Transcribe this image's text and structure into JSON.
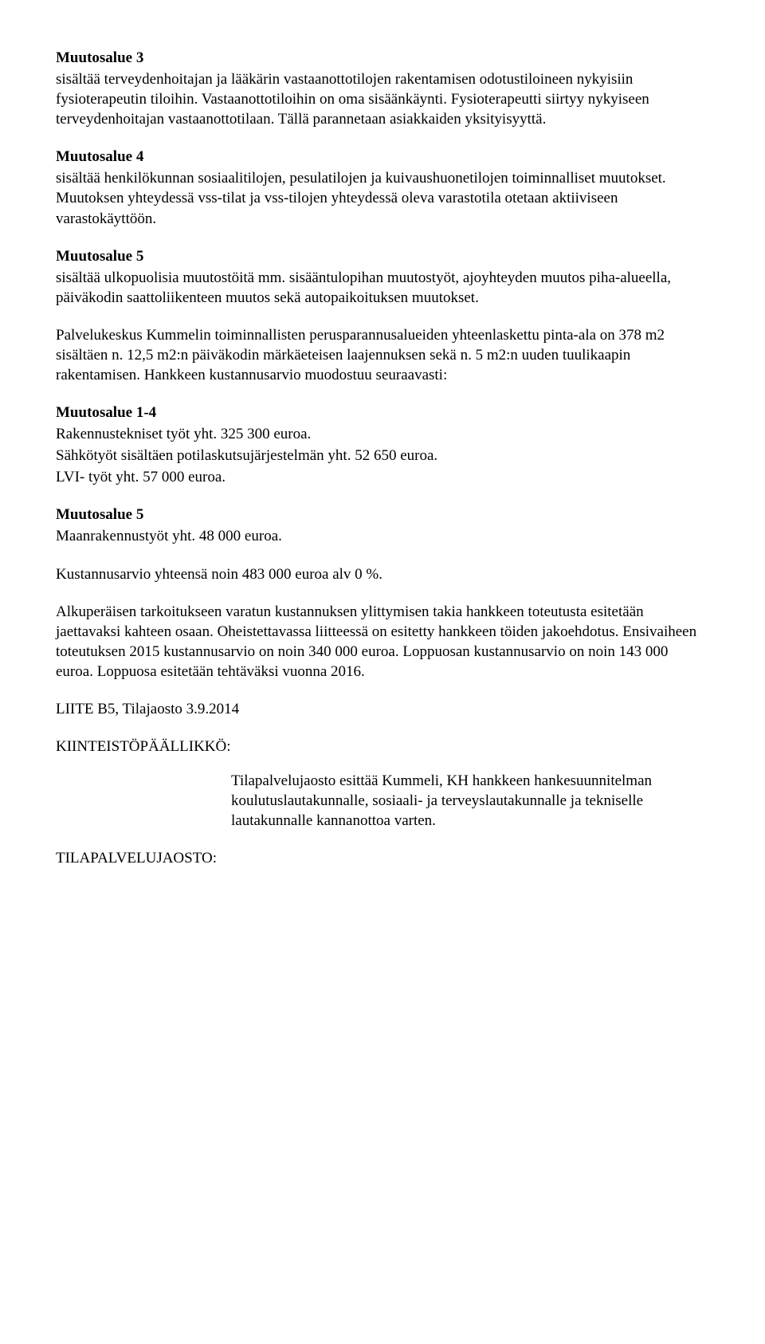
{
  "s1_h": "Muutosalue 3",
  "s1_p": "sisältää terveydenhoitajan ja lääkärin vastaanottotilojen rakentamisen odotustiloineen nykyisiin fysioterapeutin tiloihin. Vastaanottotiloihin on oma sisäänkäynti. Fysioterapeutti siirtyy nykyiseen terveydenhoitajan vastaanottotilaan. Tällä parannetaan asiakkaiden yksityisyyttä.",
  "s2_h": "Muutosalue 4",
  "s2_p": "sisältää henkilökunnan sosiaalitilojen, pesulatilojen ja kuivaushuonetilojen toiminnalliset muutokset. Muutoksen yhteydessä vss-tilat ja vss-tilojen yhteydessä oleva varastotila otetaan aktiiviseen varastokäyttöön.",
  "s3_h": "Muutosalue 5",
  "s3_p": "sisältää ulkopuolisia muutostöitä mm. sisääntulopihan muutostyöt, ajoyhteyden muutos piha-alueella, päiväkodin saattoliikenteen muutos sekä autopaikoituksen muutokset.",
  "p4": "Palvelukeskus Kummelin toiminnallisten perusparannusalueiden yhteenlaskettu pinta-ala on 378 m2 sisältäen n. 12,5 m2:n päiväkodin märkäeteisen laajennuksen sekä n. 5 m2:n uuden tuulikaapin rakentamisen. Hankkeen kustannusarvio muodostuu seuraavasti:",
  "s5_h": "Muutosalue 1-4",
  "s5_l1": "Rakennustekniset työt yht. 325 300 euroa.",
  "s5_l2": "Sähkötyöt sisältäen potilaskutsujärjestelmän yht. 52 650 euroa.",
  "s5_l3": "LVI- työt yht. 57 000 euroa.",
  "s6_h": "Muutosalue 5",
  "s6_l1": "Maanrakennustyöt yht. 48 000 euroa.",
  "p7": "Kustannusarvio yhteensä noin 483 000 euroa alv 0 %.",
  "p8": "Alkuperäisen tarkoitukseen varatun kustannuksen ylittymisen takia hankkeen toteutusta esitetään jaettavaksi kahteen osaan. Oheistettavassa liitteessä on esitetty hankkeen töiden jakoehdotus. Ensivaiheen toteutuksen 2015 kustannusarvio on noin 340 000 euroa. Loppuosan kustannusarvio on noin 143 000 euroa. Loppuosa esitetään tehtäväksi vuonna 2016.",
  "p9": "LIITE B5, Tilajaosto 3.9.2014",
  "role1": "KIINTEISTÖPÄÄLLIKKÖ:",
  "p10": "Tilapalvelujaosto esittää Kummeli, KH hankkeen hankesuunnitelman koulutuslautakunnalle, sosiaali- ja terveyslautakunnalle ja tekniselle lautakunnalle kannanottoa varten.",
  "role2": "TILAPALVELUJAOSTO:"
}
